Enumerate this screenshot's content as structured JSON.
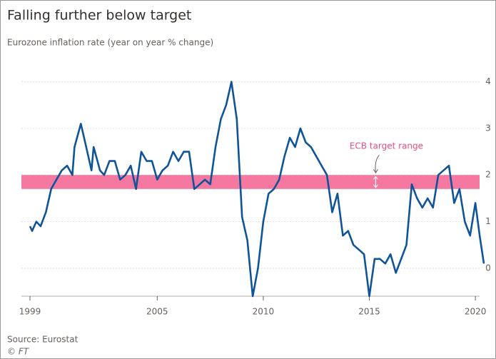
{
  "chart_data": {
    "type": "line",
    "title": "Falling further below target",
    "subtitle": "Eurozone inflation rate (year on year % change)",
    "source": "Source: Eurostat",
    "credit": "© FT",
    "annotation": "ECB target range",
    "target_range": [
      1.7,
      2.0
    ],
    "band_color": "#f4789f",
    "annotation_color": "#e9517e",
    "x": [
      1999.0,
      1999.1,
      1999.3,
      1999.5,
      1999.75,
      2000.0,
      2000.25,
      2000.5,
      2000.75,
      2001.0,
      2001.1,
      2001.4,
      2001.6,
      2001.9,
      2002.0,
      2002.3,
      2002.5,
      2002.75,
      2003.0,
      2003.25,
      2003.5,
      2003.75,
      2004.0,
      2004.25,
      2004.5,
      2004.75,
      2005.0,
      2005.25,
      2005.5,
      2005.75,
      2006.0,
      2006.25,
      2006.5,
      2006.75,
      2007.0,
      2007.25,
      2007.5,
      2007.75,
      2008.0,
      2008.25,
      2008.5,
      2008.75,
      2009.0,
      2009.25,
      2009.5,
      2009.75,
      2010.0,
      2010.25,
      2010.5,
      2010.75,
      2011.0,
      2011.25,
      2011.5,
      2011.75,
      2012.0,
      2012.25,
      2012.5,
      2012.75,
      2013.0,
      2013.25,
      2013.5,
      2013.75,
      2014.0,
      2014.25,
      2014.5,
      2014.75,
      2015.0,
      2015.25,
      2015.5,
      2015.75,
      2016.0,
      2016.25,
      2016.5,
      2016.75,
      2017.0,
      2017.25,
      2017.5,
      2017.75,
      2018.0,
      2018.25,
      2018.5,
      2018.75,
      2019.0,
      2019.25,
      2019.5,
      2019.75,
      2020.0,
      2020.2,
      2020.4
    ],
    "series": [
      {
        "name": "Eurozone inflation rate",
        "color": "#0f5499",
        "values": [
          0.9,
          0.8,
          1.0,
          0.9,
          1.2,
          1.7,
          1.9,
          2.1,
          2.2,
          2.0,
          2.6,
          3.1,
          2.7,
          2.1,
          2.6,
          2.1,
          2.0,
          2.3,
          2.3,
          1.9,
          2.0,
          2.2,
          1.7,
          2.5,
          2.3,
          2.3,
          1.9,
          2.1,
          2.2,
          2.5,
          2.3,
          2.5,
          2.5,
          1.7,
          1.8,
          1.9,
          1.8,
          2.6,
          3.2,
          3.5,
          4.0,
          3.2,
          1.1,
          0.6,
          -0.6,
          0.0,
          1.0,
          1.6,
          1.7,
          1.9,
          2.4,
          2.8,
          2.6,
          3.0,
          2.7,
          2.6,
          2.4,
          2.2,
          2.0,
          1.2,
          1.6,
          0.7,
          0.8,
          0.5,
          0.4,
          0.3,
          -0.6,
          0.2,
          0.2,
          0.1,
          0.3,
          -0.1,
          0.2,
          0.5,
          1.8,
          1.5,
          1.3,
          1.5,
          1.3,
          2.0,
          2.1,
          2.2,
          1.4,
          1.7,
          1.0,
          0.7,
          1.4,
          0.7,
          0.1
        ]
      }
    ],
    "xlim": [
      1999.0,
      2020.4
    ],
    "xticks": [
      1999,
      2005,
      2010,
      2015,
      2020
    ],
    "ylim": [
      -0.6,
      4.3
    ],
    "yticks": [
      0,
      1,
      2,
      3,
      4
    ],
    "grid": true
  }
}
